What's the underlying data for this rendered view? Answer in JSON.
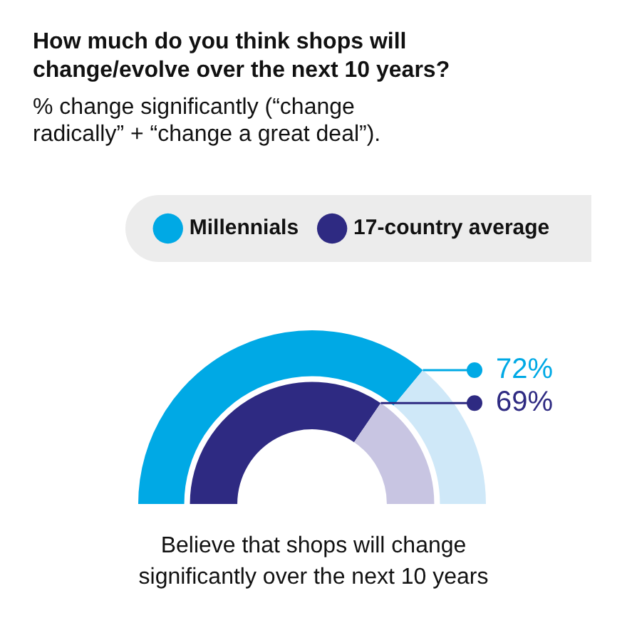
{
  "chart_data": {
    "type": "donut",
    "title": "How much do you think shops will change/evolve over the next 10 years?",
    "subtitle": "% change significantly (“change radically” + “change a great deal”).",
    "categories": [
      null,
      null
    ],
    "series": [
      {
        "name": "Millennials",
        "colors": [
          "#00a9e5",
          "#cfe8f8"
        ],
        "values": [
          72,
          28
        ],
        "value_labels": [
          "72%",
          null
        ]
      },
      {
        "name": "17-country average",
        "colors": [
          "#2e2a82",
          "#c8c5e2"
        ],
        "values": [
          69,
          31
        ],
        "value_labels": [
          "69%",
          null
        ]
      }
    ],
    "legend": "top",
    "annotations": [
      "Believe that shops will change significantly over the next 10 years"
    ]
  }
}
